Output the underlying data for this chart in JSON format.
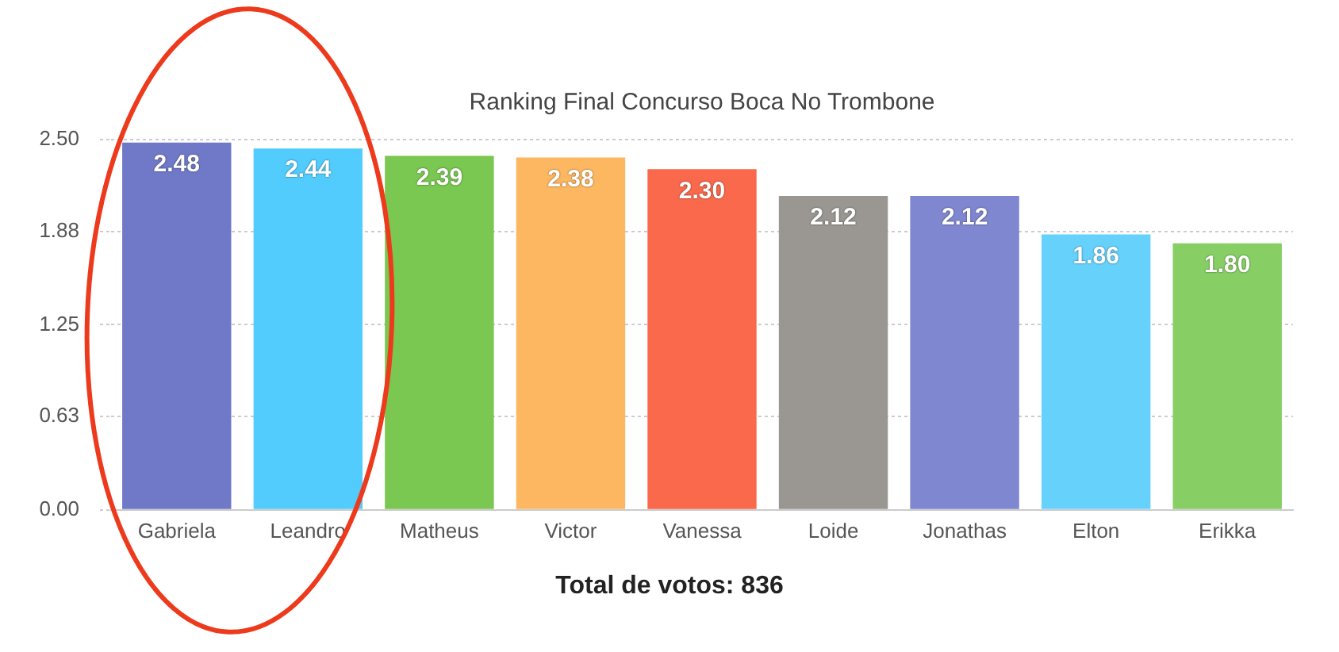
{
  "chart_data": {
    "type": "bar",
    "title": "Ranking Final Concurso Boca No Trombone",
    "xlabel": "Total de votos: 836",
    "categories": [
      "Gabriela",
      "Leandro",
      "Matheus",
      "Victor",
      "Vanessa",
      "Loide",
      "Jonathas",
      "Elton",
      "Erikka"
    ],
    "values": [
      2.48,
      2.44,
      2.39,
      2.38,
      2.3,
      2.12,
      2.12,
      1.86,
      1.8
    ],
    "colors": [
      "#7079c8",
      "#52ccfd",
      "#7ac751",
      "#fdb760",
      "#fa694c",
      "#9a9792",
      "#7f87d0",
      "#66d2fc",
      "#87cf65"
    ],
    "value_labels": [
      "2.48",
      "2.44",
      "2.39",
      "2.38",
      "2.30",
      "2.12",
      "2.12",
      "1.86",
      "1.80"
    ],
    "ylim": [
      0,
      2.5
    ],
    "yticks": [
      {
        "value": 0,
        "label": "0.00"
      },
      0.63,
      1.25,
      1.88,
      {
        "value": 2.5,
        "label": "2.50"
      }
    ],
    "grid": "y",
    "legend": false
  }
}
